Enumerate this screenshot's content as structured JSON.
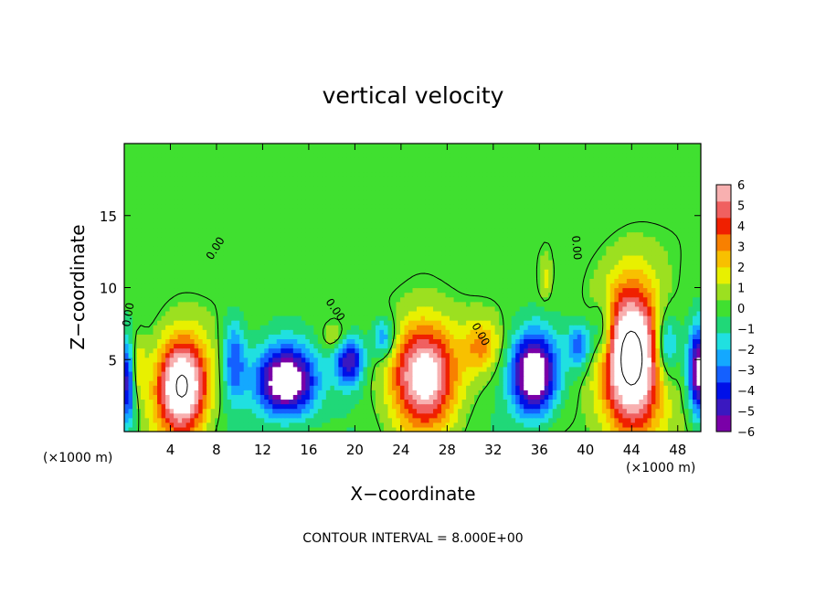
{
  "chart_data": {
    "type": "heatmap",
    "title": "vertical velocity",
    "xlabel": "X−coordinate",
    "ylabel": "Z−coordinate",
    "x_unit_label": "(×1000 m)",
    "x_unit_label_right": "(×1000 m)",
    "footer": "CONTOUR INTERVAL = 8.000E+00",
    "contour_label": "0.00",
    "xlim": [
      0,
      50
    ],
    "ylim": [
      0,
      20
    ],
    "x_ticks": [
      4,
      8,
      12,
      16,
      20,
      24,
      28,
      32,
      36,
      40,
      44,
      48
    ],
    "y_ticks": [
      5,
      10,
      15
    ],
    "colorbar": {
      "range": [
        -6,
        6
      ],
      "ticks": [
        6,
        5,
        4,
        3,
        2,
        1,
        0,
        -1,
        -2,
        -3,
        -4,
        -5,
        -6
      ],
      "tick_labels": [
        "6",
        "5",
        "4",
        "3",
        "2",
        "1",
        "0",
        "−1",
        "−2",
        "−3",
        "−4",
        "−5",
        "−6"
      ],
      "colors": [
        "#7a00a8",
        "#3a18c0",
        "#0010e8",
        "#1460ff",
        "#14a8ff",
        "#20e0e0",
        "#20d878",
        "#40e030",
        "#9ce020",
        "#e8f000",
        "#f8c000",
        "#f88000",
        "#f02000",
        "#f06060",
        "#f8b0b0"
      ]
    },
    "features": [
      {
        "kind": "updraft",
        "x": 5.0,
        "z": 3.2,
        "strength": 1.4,
        "sx": 2.2,
        "sz": 3.4
      },
      {
        "kind": "updraft",
        "x": 26.0,
        "z": 4.0,
        "strength": 1.2,
        "sx": 2.8,
        "sz": 3.6
      },
      {
        "kind": "updraft",
        "x": 44.0,
        "z": 5.0,
        "strength": 1.5,
        "sx": 2.6,
        "sz": 5.2
      },
      {
        "kind": "updraft",
        "x": 31.0,
        "z": 6.0,
        "strength": 0.45,
        "sx": 1.6,
        "sz": 1.8
      },
      {
        "kind": "updraft",
        "x": 18.5,
        "z": 6.5,
        "strength": 0.3,
        "sx": 1.2,
        "sz": 1.0
      },
      {
        "kind": "updraft",
        "x": 36.5,
        "z": 10.5,
        "strength": 0.25,
        "sx": 0.5,
        "sz": 1.5
      },
      {
        "kind": "updraft",
        "x": 1.0,
        "z": 4.5,
        "strength": 0.4,
        "sx": 0.8,
        "sz": 2.2
      },
      {
        "kind": "downdraft",
        "x": 14.0,
        "z": 3.5,
        "strength": 1.3,
        "sx": 2.6,
        "sz": 2.4
      },
      {
        "kind": "downdraft",
        "x": 19.5,
        "z": 5.0,
        "strength": 0.9,
        "sx": 1.3,
        "sz": 1.8
      },
      {
        "kind": "downdraft",
        "x": 35.5,
        "z": 4.0,
        "strength": 1.3,
        "sx": 2.0,
        "sz": 2.8
      },
      {
        "kind": "downdraft",
        "x": 49.8,
        "z": 4.2,
        "strength": 1.1,
        "sx": 0.9,
        "sz": 3.0
      },
      {
        "kind": "downdraft",
        "x": 0.3,
        "z": 3.5,
        "strength": 0.9,
        "sx": 0.7,
        "sz": 3.0
      },
      {
        "kind": "downdraft",
        "x": 9.5,
        "z": 5.0,
        "strength": 0.6,
        "sx": 1.0,
        "sz": 2.8
      },
      {
        "kind": "downdraft",
        "x": 22.5,
        "z": 6.5,
        "strength": 0.55,
        "sx": 1.0,
        "sz": 1.4
      },
      {
        "kind": "downdraft",
        "x": 39.5,
        "z": 6.0,
        "strength": 0.6,
        "sx": 1.0,
        "sz": 1.6
      },
      {
        "kind": "downdraft",
        "x": 41.5,
        "z": 7.0,
        "strength": 0.5,
        "sx": 1.0,
        "sz": 2.2
      },
      {
        "kind": "downdraft",
        "x": 47.0,
        "z": 6.0,
        "strength": 0.6,
        "sx": 1.0,
        "sz": 2.4
      }
    ],
    "grid": false,
    "legend_position": "right"
  }
}
